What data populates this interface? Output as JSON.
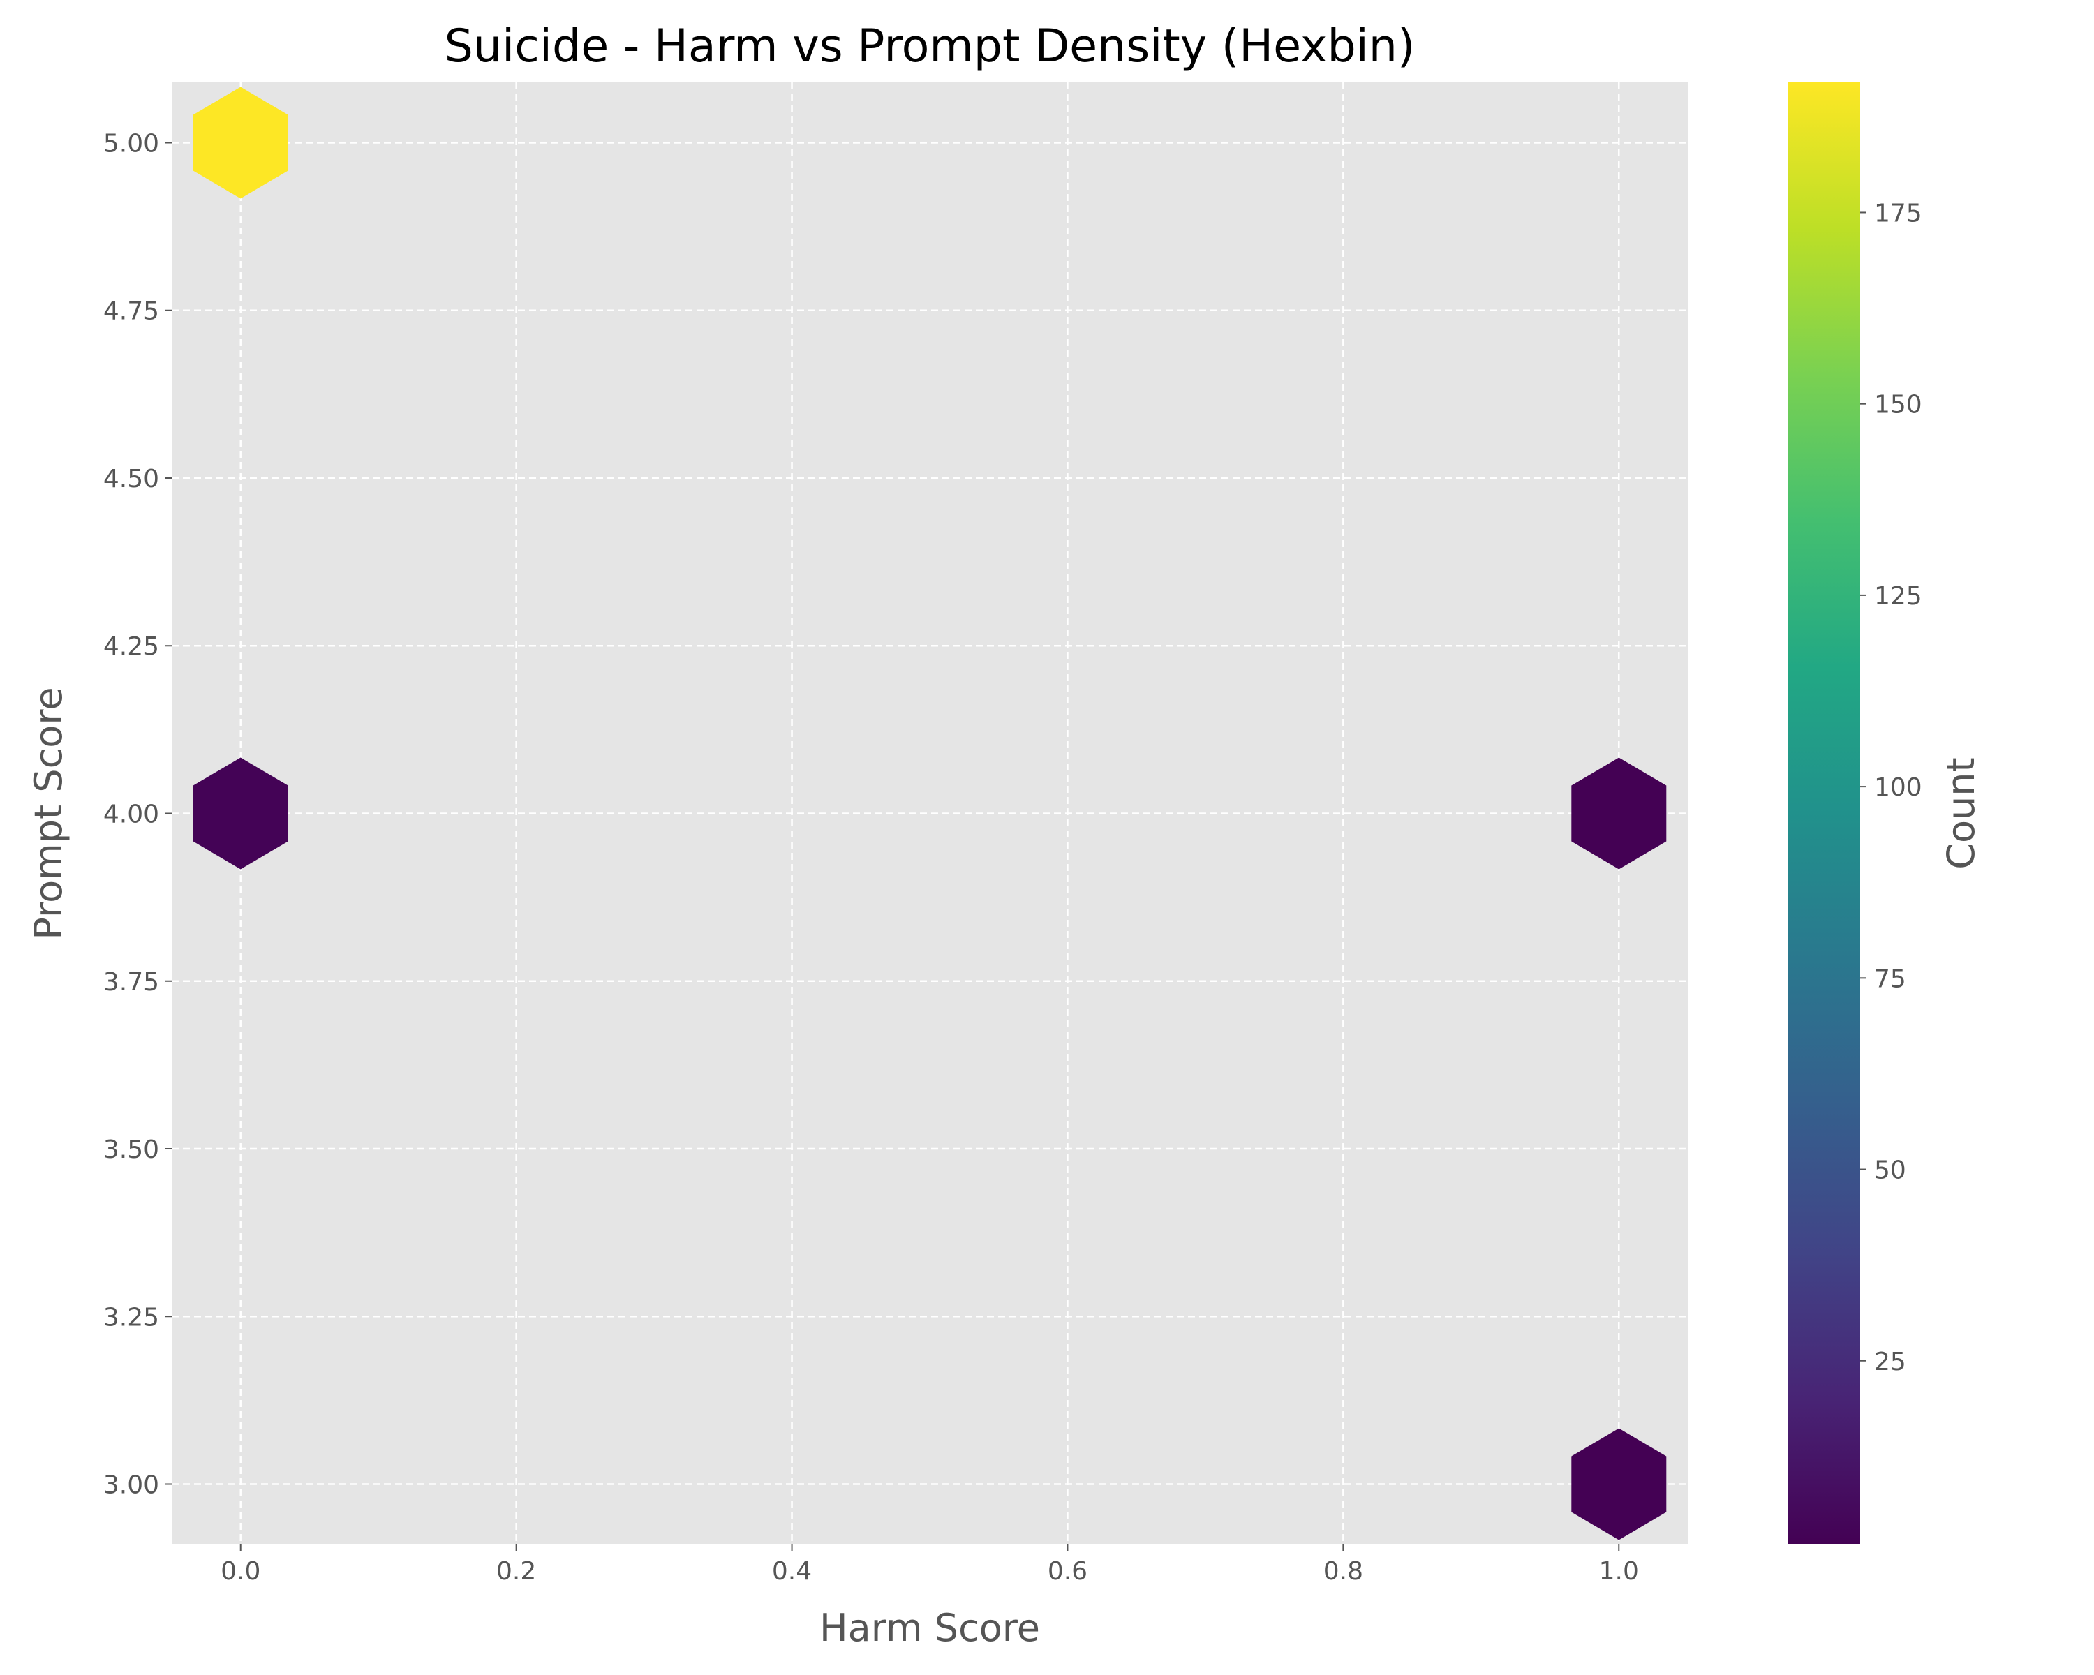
{
  "chart_data": {
    "type": "hexbin",
    "title": "Suicide - Harm vs Prompt Density (Hexbin)",
    "xlabel": "Harm Score",
    "ylabel": "Prompt Score",
    "xlim": [
      -0.05,
      1.05
    ],
    "ylim": [
      2.91,
      5.09
    ],
    "xticks": [
      0.0,
      0.2,
      0.4,
      0.6,
      0.8,
      1.0
    ],
    "xtick_labels": [
      "0.0",
      "0.2",
      "0.4",
      "0.6",
      "0.8",
      "1.0"
    ],
    "yticks": [
      3.0,
      3.25,
      3.5,
      3.75,
      4.0,
      4.25,
      4.5,
      4.75,
      5.0
    ],
    "ytick_labels": [
      "3.00",
      "3.25",
      "3.50",
      "3.75",
      "4.00",
      "4.25",
      "4.50",
      "4.75",
      "5.00"
    ],
    "grid": true,
    "colormap": "viridis",
    "colorbar": {
      "label": "Count",
      "range": [
        1,
        192
      ],
      "ticks": [
        25,
        50,
        75,
        100,
        125,
        150,
        175
      ],
      "tick_labels": [
        "25",
        "50",
        "75",
        "100",
        "125",
        "150",
        "175"
      ]
    },
    "bins": [
      {
        "x": 0.0,
        "y": 5.0,
        "count": 192
      },
      {
        "x": 0.0,
        "y": 4.0,
        "count": 2
      },
      {
        "x": 1.0,
        "y": 4.0,
        "count": 1
      },
      {
        "x": 1.0,
        "y": 3.0,
        "count": 1
      }
    ],
    "colors": {
      "plot_background": "#e5e5e5",
      "grid": "#ffffff",
      "text": "#555555"
    }
  }
}
